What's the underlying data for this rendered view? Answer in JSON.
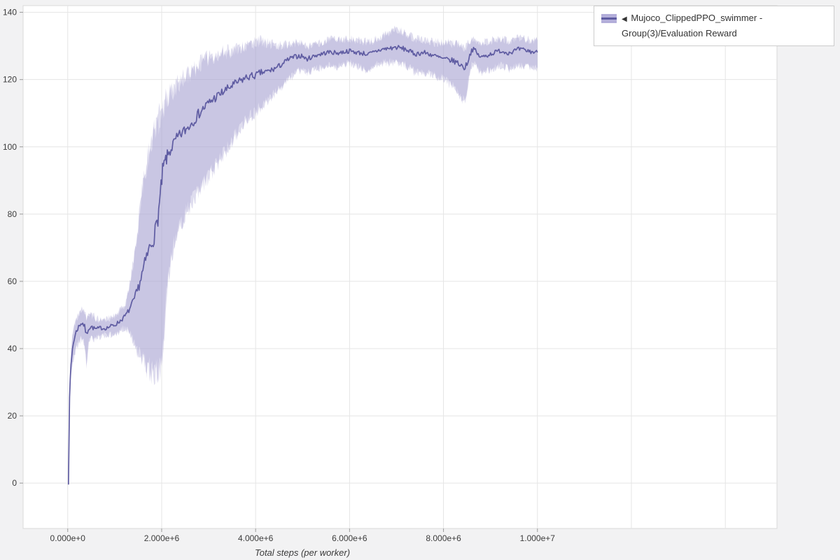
{
  "figure": {
    "background": "#f2f2f3",
    "plot_background": "#ffffff",
    "grid_color": "#e5e5e5",
    "frame_border_color": "#d9d9d9",
    "tick_color": "#999999",
    "tick_label_color": "#3b3b3b"
  },
  "legend": {
    "marker": "◀",
    "label": "Mujoco_ClippedPPO_swimmer - Group(3)/Evaluation Reward",
    "line_color": "#5f5ca2",
    "band_color": "#b3aeda"
  },
  "chart_data": {
    "type": "line",
    "title": "",
    "xlabel": "Total steps (per worker)",
    "ylabel": "",
    "grid": true,
    "legend_position": "top-right",
    "xlim": [
      -950000,
      15100000
    ],
    "ylim": [
      -13.5,
      142
    ],
    "x_ticks": [
      0,
      2000000,
      4000000,
      6000000,
      8000000,
      10000000
    ],
    "x_tick_labels": [
      "0.000e+0",
      "2.000e+6",
      "4.000e+6",
      "6.000e+6",
      "8.000e+6",
      "1.000e+7"
    ],
    "x_grid_extra": [
      12000000,
      14000000
    ],
    "y_ticks": [
      0,
      20,
      40,
      60,
      80,
      100,
      120,
      140
    ],
    "y_tick_labels": [
      "0",
      "20",
      "40",
      "60",
      "80",
      "100",
      "120",
      "140"
    ],
    "noise": {
      "mean_base": 0.45,
      "mean_scale": 0.03,
      "band_base": 0.9,
      "band_scale": 0.05
    },
    "series": [
      {
        "name": "Mujoco_ClippedPPO_swimmer - Group(3)/Evaluation Reward",
        "color": "#5f5ca2",
        "band_color": "#a9a3d2",
        "band_opacity": 0.38,
        "points_format": [
          "x",
          "mean",
          "lo",
          "hi"
        ],
        "points": [
          [
            15000,
            0,
            0,
            0
          ],
          [
            40000,
            26,
            25,
            27
          ],
          [
            70000,
            35,
            32,
            38
          ],
          [
            100000,
            40,
            36,
            44
          ],
          [
            140000,
            43,
            38,
            47
          ],
          [
            180000,
            45,
            40,
            49
          ],
          [
            230000,
            46.5,
            42,
            50
          ],
          [
            280000,
            47.5,
            43,
            51.5
          ],
          [
            320000,
            47.5,
            43,
            52
          ],
          [
            360000,
            46.5,
            41,
            50.5
          ],
          [
            400000,
            44,
            34.5,
            49.5
          ],
          [
            440000,
            46,
            41.5,
            49.5
          ],
          [
            500000,
            46.5,
            43,
            50
          ],
          [
            560000,
            46,
            43,
            49.5
          ],
          [
            620000,
            45.8,
            43.2,
            48.8
          ],
          [
            700000,
            46.2,
            43.8,
            48.8
          ],
          [
            780000,
            46,
            44,
            48.5
          ],
          [
            860000,
            46.3,
            44,
            49
          ],
          [
            940000,
            46.8,
            44.3,
            49.3
          ],
          [
            1000000,
            47,
            44.5,
            49.8
          ],
          [
            1080000,
            47.8,
            45,
            50.8
          ],
          [
            1160000,
            48.8,
            45.8,
            52
          ],
          [
            1240000,
            50,
            46,
            54
          ],
          [
            1320000,
            51.8,
            44.5,
            59
          ],
          [
            1400000,
            54,
            42,
            66
          ],
          [
            1480000,
            57,
            39.5,
            74
          ],
          [
            1560000,
            61,
            37,
            84
          ],
          [
            1640000,
            65,
            35,
            92
          ],
          [
            1720000,
            69,
            33.8,
            98
          ],
          [
            1800000,
            72,
            33,
            103
          ],
          [
            1860000,
            74.5,
            33,
            105.5
          ],
          [
            1920000,
            79,
            33.5,
            107.5
          ],
          [
            1970000,
            85,
            34.5,
            109.5
          ],
          [
            2020000,
            92.5,
            38,
            111.5
          ],
          [
            2070000,
            95.5,
            50,
            113
          ],
          [
            2120000,
            97,
            59,
            114.5
          ],
          [
            2200000,
            99.5,
            67,
            116
          ],
          [
            2280000,
            101.5,
            72,
            117.5
          ],
          [
            2360000,
            103,
            75.5,
            119
          ],
          [
            2440000,
            104.2,
            78,
            120
          ],
          [
            2520000,
            105.2,
            80.5,
            121
          ],
          [
            2600000,
            106.5,
            82.5,
            122
          ],
          [
            2700000,
            108.2,
            85,
            123.2
          ],
          [
            2800000,
            110,
            87,
            124.5
          ],
          [
            2900000,
            111.6,
            89,
            125.6
          ],
          [
            3000000,
            113,
            91,
            126.5
          ],
          [
            3100000,
            114.2,
            93.2,
            127
          ],
          [
            3200000,
            115.2,
            95.2,
            127.6
          ],
          [
            3300000,
            116.2,
            97.5,
            128
          ],
          [
            3400000,
            117.2,
            99.5,
            128.2
          ],
          [
            3500000,
            118.2,
            102,
            128.6
          ],
          [
            3600000,
            119,
            104,
            129
          ],
          [
            3700000,
            119.8,
            106,
            129.6
          ],
          [
            3800000,
            120.6,
            108,
            130
          ],
          [
            3900000,
            121,
            109.2,
            130.6
          ],
          [
            4000000,
            121.2,
            110.2,
            131
          ],
          [
            4100000,
            122,
            112,
            131.6
          ],
          [
            4200000,
            122.2,
            113.2,
            131
          ],
          [
            4300000,
            122.6,
            114.5,
            130.6
          ],
          [
            4400000,
            123.2,
            115.8,
            130.2
          ],
          [
            4500000,
            124,
            117.2,
            130.2
          ],
          [
            4600000,
            125,
            118.6,
            130.2
          ],
          [
            4700000,
            126,
            120,
            130.5
          ],
          [
            4800000,
            126.6,
            121.2,
            130.6
          ],
          [
            4900000,
            127,
            122.2,
            131
          ],
          [
            5000000,
            127,
            122.6,
            130.6
          ],
          [
            5080000,
            126,
            122,
            130
          ],
          [
            5160000,
            126.5,
            122.4,
            130.2
          ],
          [
            5240000,
            127,
            122.8,
            130.4
          ],
          [
            5320000,
            127.4,
            123.2,
            130.8
          ],
          [
            5400000,
            127.6,
            123.6,
            131
          ],
          [
            5500000,
            128,
            124,
            131.5
          ],
          [
            5600000,
            128.2,
            124.2,
            132
          ],
          [
            5700000,
            127.9,
            123.9,
            131.8
          ],
          [
            5800000,
            128,
            124,
            132
          ],
          [
            5900000,
            128.3,
            124.5,
            132
          ],
          [
            6000000,
            128.5,
            125,
            132.2
          ],
          [
            6100000,
            128.2,
            124.4,
            131.9
          ],
          [
            6200000,
            128,
            123.6,
            131.6
          ],
          [
            6300000,
            127.8,
            123.1,
            131.3
          ],
          [
            6400000,
            127.5,
            122.6,
            131
          ],
          [
            6500000,
            128,
            123.6,
            131.6
          ],
          [
            6600000,
            128.6,
            124.6,
            132.3
          ],
          [
            6700000,
            129,
            125,
            133
          ],
          [
            6800000,
            129.2,
            125.1,
            133.8
          ],
          [
            6900000,
            129.4,
            125.1,
            134.5
          ],
          [
            7000000,
            129.6,
            125.2,
            135
          ],
          [
            7100000,
            129.3,
            124.7,
            134.4
          ],
          [
            7200000,
            129,
            124.2,
            133.8
          ],
          [
            7300000,
            128.2,
            123.2,
            133
          ],
          [
            7400000,
            127.6,
            122.2,
            132.2
          ],
          [
            7500000,
            127.9,
            122.2,
            132
          ],
          [
            7600000,
            128,
            122.2,
            131.9
          ],
          [
            7700000,
            127.6,
            121.7,
            131.4
          ],
          [
            7800000,
            127.1,
            121.2,
            131.1
          ],
          [
            7900000,
            126.6,
            120.7,
            131
          ],
          [
            8000000,
            126.1,
            120.1,
            130.9
          ],
          [
            8100000,
            125.9,
            119.1,
            130.9
          ],
          [
            8200000,
            125.6,
            118,
            130.8
          ],
          [
            8300000,
            125,
            116.2,
            130.5
          ],
          [
            8400000,
            124,
            114.2,
            130
          ],
          [
            8460000,
            123.5,
            113.6,
            129.8
          ],
          [
            8520000,
            125.6,
            118.2,
            130.5
          ],
          [
            8600000,
            128.8,
            124.1,
            131.6
          ],
          [
            8660000,
            129,
            124.6,
            131.9
          ],
          [
            8720000,
            127.6,
            123.1,
            131.3
          ],
          [
            8800000,
            126.6,
            122.1,
            131
          ],
          [
            8900000,
            127.1,
            122.6,
            131.3
          ],
          [
            9000000,
            127.6,
            123.1,
            131.6
          ],
          [
            9100000,
            128.1,
            123.6,
            131.9
          ],
          [
            9200000,
            128.6,
            124.1,
            132.1
          ],
          [
            9300000,
            128.2,
            123.6,
            131.8
          ],
          [
            9400000,
            128,
            123.1,
            131.6
          ],
          [
            9500000,
            128.5,
            123.9,
            132
          ],
          [
            9600000,
            129,
            124.4,
            132.3
          ],
          [
            9700000,
            128.8,
            124.1,
            132.1
          ],
          [
            9800000,
            128.5,
            123.6,
            131.9
          ],
          [
            9900000,
            128.2,
            123.6,
            131.6
          ],
          [
            10000000,
            128.1,
            123.6,
            131.6
          ]
        ]
      }
    ]
  }
}
